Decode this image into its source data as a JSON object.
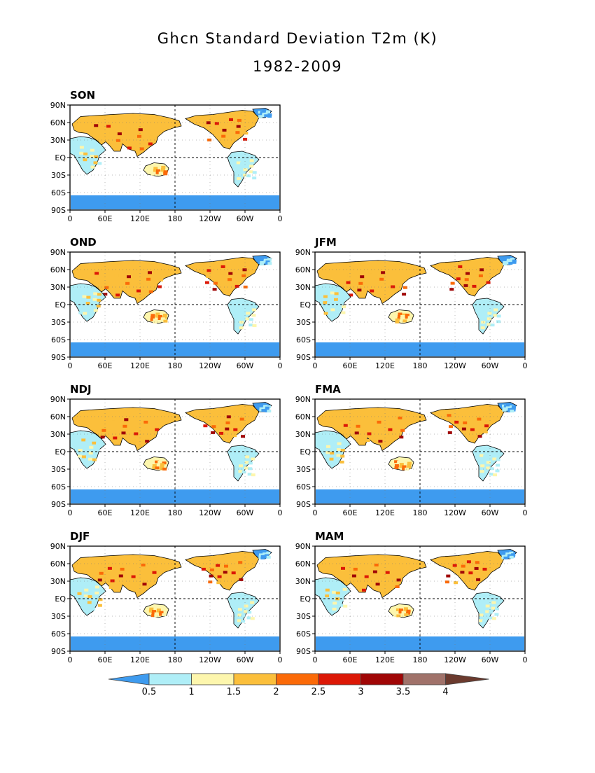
{
  "title": "Ghcn Standard Deviation T2m (K)",
  "subtitle": "1982-2009",
  "panels": [
    {
      "label": "SON"
    },
    {
      "label": "OND"
    },
    {
      "label": "JFM"
    },
    {
      "label": "NDJ"
    },
    {
      "label": "FMA"
    },
    {
      "label": "DJF"
    },
    {
      "label": "MAM"
    }
  ],
  "lat_ticks": [
    "90N",
    "60N",
    "30N",
    "EQ",
    "30S",
    "60S",
    "90S"
  ],
  "lon_ticks": [
    "0",
    "60E",
    "120E",
    "180",
    "120W",
    "60W",
    "0"
  ],
  "colorbar": {
    "labels": [
      "0.5",
      "1",
      "1.5",
      "2",
      "2.5",
      "3",
      "3.5",
      "4"
    ],
    "colors": [
      "#3e9bef",
      "#afeef7",
      "#fdf6ad",
      "#fbbf3b",
      "#fb6a08",
      "#dc1806",
      "#a00606",
      "#a0726a",
      "#6b3a2e"
    ]
  }
}
